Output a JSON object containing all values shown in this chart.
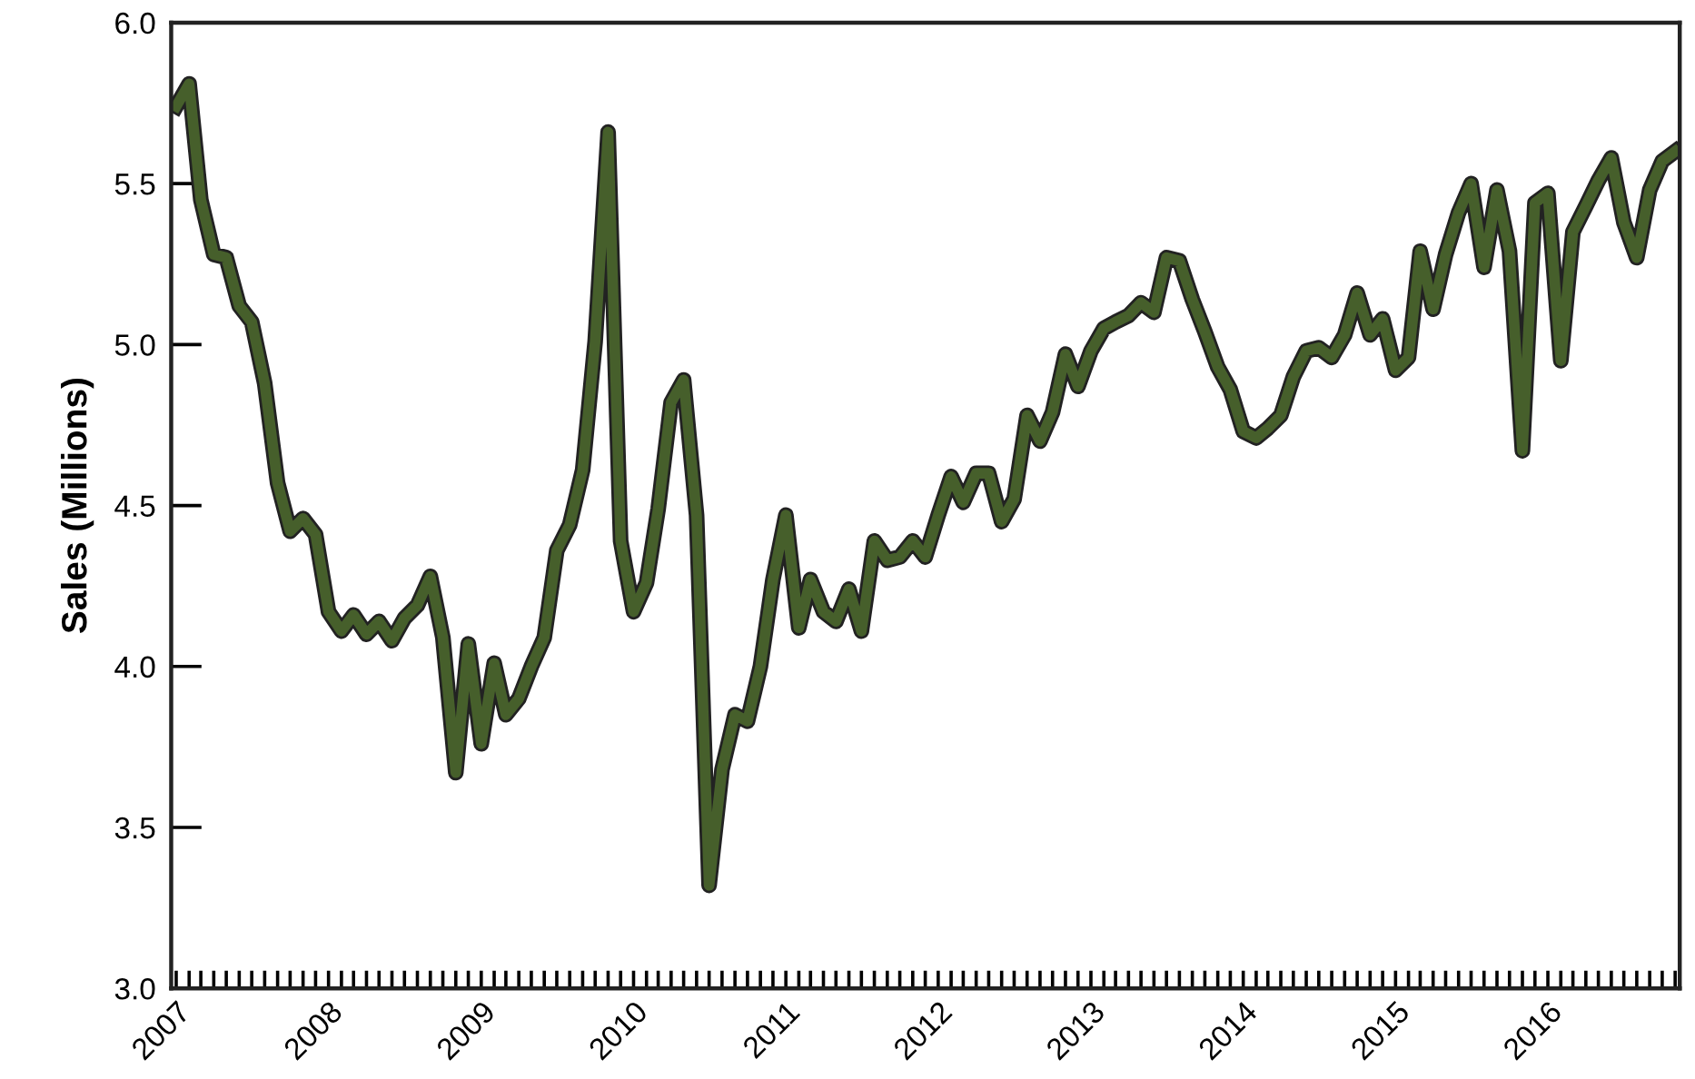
{
  "chart_data": {
    "type": "line",
    "ylabel": "Sales (Millions)",
    "x": [
      "2007-01",
      "2007-02",
      "2007-03",
      "2007-04",
      "2007-05",
      "2007-06",
      "2007-07",
      "2007-08",
      "2007-09",
      "2007-10",
      "2007-11",
      "2007-12",
      "2008-01",
      "2008-02",
      "2008-03",
      "2008-04",
      "2008-05",
      "2008-06",
      "2008-07",
      "2008-08",
      "2008-09",
      "2008-10",
      "2008-11",
      "2008-12",
      "2009-01",
      "2009-02",
      "2009-03",
      "2009-04",
      "2009-05",
      "2009-06",
      "2009-07",
      "2009-08",
      "2009-09",
      "2009-10",
      "2009-11",
      "2009-12",
      "2010-01",
      "2010-02",
      "2010-03",
      "2010-04",
      "2010-05",
      "2010-06",
      "2010-07",
      "2010-08",
      "2010-09",
      "2010-10",
      "2010-11",
      "2010-12",
      "2011-01",
      "2011-02",
      "2011-03",
      "2011-04",
      "2011-05",
      "2011-06",
      "2011-07",
      "2011-08",
      "2011-09",
      "2011-10",
      "2011-11",
      "2011-12",
      "2012-01",
      "2012-02",
      "2012-03",
      "2012-04",
      "2012-05",
      "2012-06",
      "2012-07",
      "2012-08",
      "2012-09",
      "2012-10",
      "2012-11",
      "2012-12",
      "2013-01",
      "2013-02",
      "2013-03",
      "2013-04",
      "2013-05",
      "2013-06",
      "2013-07",
      "2013-08",
      "2013-09",
      "2013-10",
      "2013-11",
      "2013-12",
      "2014-01",
      "2014-02",
      "2014-03",
      "2014-04",
      "2014-05",
      "2014-06",
      "2014-07",
      "2014-08",
      "2014-09",
      "2014-10",
      "2014-11",
      "2014-12",
      "2015-01",
      "2015-02",
      "2015-03",
      "2015-04",
      "2015-05",
      "2015-06",
      "2015-07",
      "2015-08",
      "2015-09",
      "2015-10",
      "2015-11",
      "2015-12",
      "2016-01",
      "2016-02",
      "2016-03",
      "2016-04",
      "2016-05",
      "2016-06",
      "2016-07",
      "2016-08",
      "2016-09",
      "2016-10",
      "2016-11"
    ],
    "series": [
      {
        "color": "#465f2b",
        "values": [
          5.74,
          5.81,
          5.45,
          5.28,
          5.27,
          5.12,
          5.07,
          4.88,
          4.57,
          4.42,
          4.46,
          4.41,
          4.17,
          4.11,
          4.16,
          4.1,
          4.14,
          4.08,
          4.15,
          4.19,
          4.28,
          4.09,
          3.67,
          4.07,
          3.76,
          4.01,
          3.85,
          3.9,
          4.0,
          4.09,
          4.36,
          4.44,
          4.61,
          5.01,
          5.66,
          4.39,
          4.17,
          4.26,
          4.49,
          4.82,
          4.89,
          4.47,
          3.32,
          3.68,
          3.85,
          3.83,
          4.0,
          4.27,
          4.47,
          4.12,
          4.27,
          4.17,
          4.14,
          4.24,
          4.11,
          4.39,
          4.33,
          4.34,
          4.39,
          4.34,
          4.47,
          4.59,
          4.51,
          4.6,
          4.6,
          4.45,
          4.52,
          4.78,
          4.7,
          4.79,
          4.97,
          4.87,
          4.98,
          5.05,
          5.07,
          5.09,
          5.13,
          5.1,
          5.27,
          5.26,
          5.14,
          5.04,
          4.93,
          4.86,
          4.73,
          4.71,
          4.74,
          4.78,
          4.9,
          4.98,
          4.99,
          4.96,
          5.03,
          5.16,
          5.03,
          5.08,
          4.92,
          4.96,
          5.29,
          5.11,
          5.28,
          5.41,
          5.5,
          5.24,
          5.48,
          5.29,
          4.67,
          5.44,
          5.47,
          4.95,
          5.35,
          5.43,
          5.51,
          5.58,
          5.38,
          5.27,
          5.48,
          5.57,
          5.6
        ]
      }
    ],
    "xlim": [
      "2006-12-20",
      "2016-11-12"
    ],
    "xticks": [
      {
        "value": "2007-01",
        "label": "2007"
      },
      {
        "value": "2007-02",
        "label": null
      },
      {
        "value": "2007-03",
        "label": null
      },
      {
        "value": "2007-04",
        "label": null
      },
      {
        "value": "2007-05",
        "label": null
      },
      {
        "value": "2007-06",
        "label": null
      },
      {
        "value": "2007-07",
        "label": null
      },
      {
        "value": "2007-08",
        "label": null
      },
      {
        "value": "2007-09",
        "label": null
      },
      {
        "value": "2007-10",
        "label": null
      },
      {
        "value": "2007-11",
        "label": null
      },
      {
        "value": "2007-12",
        "label": null
      },
      {
        "value": "2008-01",
        "label": "2008"
      },
      {
        "value": "2008-02",
        "label": null
      },
      {
        "value": "2008-03",
        "label": null
      },
      {
        "value": "2008-04",
        "label": null
      },
      {
        "value": "2008-05",
        "label": null
      },
      {
        "value": "2008-06",
        "label": null
      },
      {
        "value": "2008-07",
        "label": null
      },
      {
        "value": "2008-08",
        "label": null
      },
      {
        "value": "2008-09",
        "label": null
      },
      {
        "value": "2008-10",
        "label": null
      },
      {
        "value": "2008-11",
        "label": null
      },
      {
        "value": "2008-12",
        "label": null
      },
      {
        "value": "2009-01",
        "label": "2009"
      },
      {
        "value": "2009-02",
        "label": null
      },
      {
        "value": "2009-03",
        "label": null
      },
      {
        "value": "2009-04",
        "label": null
      },
      {
        "value": "2009-05",
        "label": null
      },
      {
        "value": "2009-06",
        "label": null
      },
      {
        "value": "2009-07",
        "label": null
      },
      {
        "value": "2009-08",
        "label": null
      },
      {
        "value": "2009-09",
        "label": null
      },
      {
        "value": "2009-10",
        "label": null
      },
      {
        "value": "2009-11",
        "label": null
      },
      {
        "value": "2009-12",
        "label": null
      },
      {
        "value": "2010-01",
        "label": "2010"
      },
      {
        "value": "2010-02",
        "label": null
      },
      {
        "value": "2010-03",
        "label": null
      },
      {
        "value": "2010-04",
        "label": null
      },
      {
        "value": "2010-05",
        "label": null
      },
      {
        "value": "2010-06",
        "label": null
      },
      {
        "value": "2010-07",
        "label": null
      },
      {
        "value": "2010-08",
        "label": null
      },
      {
        "value": "2010-09",
        "label": null
      },
      {
        "value": "2010-10",
        "label": null
      },
      {
        "value": "2010-11",
        "label": null
      },
      {
        "value": "2010-12",
        "label": null
      },
      {
        "value": "2011-01",
        "label": "2011"
      },
      {
        "value": "2011-02",
        "label": null
      },
      {
        "value": "2011-03",
        "label": null
      },
      {
        "value": "2011-04",
        "label": null
      },
      {
        "value": "2011-05",
        "label": null
      },
      {
        "value": "2011-06",
        "label": null
      },
      {
        "value": "2011-07",
        "label": null
      },
      {
        "value": "2011-08",
        "label": null
      },
      {
        "value": "2011-09",
        "label": null
      },
      {
        "value": "2011-10",
        "label": null
      },
      {
        "value": "2011-11",
        "label": null
      },
      {
        "value": "2011-12",
        "label": null
      },
      {
        "value": "2012-01",
        "label": "2012"
      },
      {
        "value": "2012-02",
        "label": null
      },
      {
        "value": "2012-03",
        "label": null
      },
      {
        "value": "2012-04",
        "label": null
      },
      {
        "value": "2012-05",
        "label": null
      },
      {
        "value": "2012-06",
        "label": null
      },
      {
        "value": "2012-07",
        "label": null
      },
      {
        "value": "2012-08",
        "label": null
      },
      {
        "value": "2012-09",
        "label": null
      },
      {
        "value": "2012-10",
        "label": null
      },
      {
        "value": "2012-11",
        "label": null
      },
      {
        "value": "2012-12",
        "label": null
      },
      {
        "value": "2013-01",
        "label": "2013"
      },
      {
        "value": "2013-02",
        "label": null
      },
      {
        "value": "2013-03",
        "label": null
      },
      {
        "value": "2013-04",
        "label": null
      },
      {
        "value": "2013-05",
        "label": null
      },
      {
        "value": "2013-06",
        "label": null
      },
      {
        "value": "2013-07",
        "label": null
      },
      {
        "value": "2013-08",
        "label": null
      },
      {
        "value": "2013-09",
        "label": null
      },
      {
        "value": "2013-10",
        "label": null
      },
      {
        "value": "2013-11",
        "label": null
      },
      {
        "value": "2013-12",
        "label": null
      },
      {
        "value": "2014-01",
        "label": "2014"
      },
      {
        "value": "2014-02",
        "label": null
      },
      {
        "value": "2014-03",
        "label": null
      },
      {
        "value": "2014-04",
        "label": null
      },
      {
        "value": "2014-05",
        "label": null
      },
      {
        "value": "2014-06",
        "label": null
      },
      {
        "value": "2014-07",
        "label": null
      },
      {
        "value": "2014-08",
        "label": null
      },
      {
        "value": "2014-09",
        "label": null
      },
      {
        "value": "2014-10",
        "label": null
      },
      {
        "value": "2014-11",
        "label": null
      },
      {
        "value": "2014-12",
        "label": null
      },
      {
        "value": "2015-01",
        "label": "2015"
      },
      {
        "value": "2015-02",
        "label": null
      },
      {
        "value": "2015-03",
        "label": null
      },
      {
        "value": "2015-04",
        "label": null
      },
      {
        "value": "2015-05",
        "label": null
      },
      {
        "value": "2015-06",
        "label": null
      },
      {
        "value": "2015-07",
        "label": null
      },
      {
        "value": "2015-08",
        "label": null
      },
      {
        "value": "2015-09",
        "label": null
      },
      {
        "value": "2015-10",
        "label": null
      },
      {
        "value": "2015-11",
        "label": null
      },
      {
        "value": "2015-12",
        "label": null
      },
      {
        "value": "2016-01",
        "label": "2016"
      },
      {
        "value": "2016-02",
        "label": null
      },
      {
        "value": "2016-03",
        "label": null
      },
      {
        "value": "2016-04",
        "label": null
      },
      {
        "value": "2016-05",
        "label": null
      },
      {
        "value": "2016-06",
        "label": null
      },
      {
        "value": "2016-07",
        "label": null
      },
      {
        "value": "2016-08",
        "label": null
      },
      {
        "value": "2016-09",
        "label": null
      },
      {
        "value": "2016-10",
        "label": null
      },
      {
        "value": "2016-11",
        "label": null
      }
    ],
    "ylim": [
      3.0,
      6.0
    ],
    "yticks": [
      {
        "value": 3.0,
        "label": "3.0"
      },
      {
        "value": 3.5,
        "label": "3.5"
      },
      {
        "value": 4.0,
        "label": "4.0"
      },
      {
        "value": 4.5,
        "label": "4.5"
      },
      {
        "value": 5.0,
        "label": "5.0"
      },
      {
        "value": 5.5,
        "label": "5.5"
      },
      {
        "value": 6.0,
        "label": "6.0"
      }
    ],
    "grid": false,
    "marker": "none",
    "line_style": "solid"
  }
}
